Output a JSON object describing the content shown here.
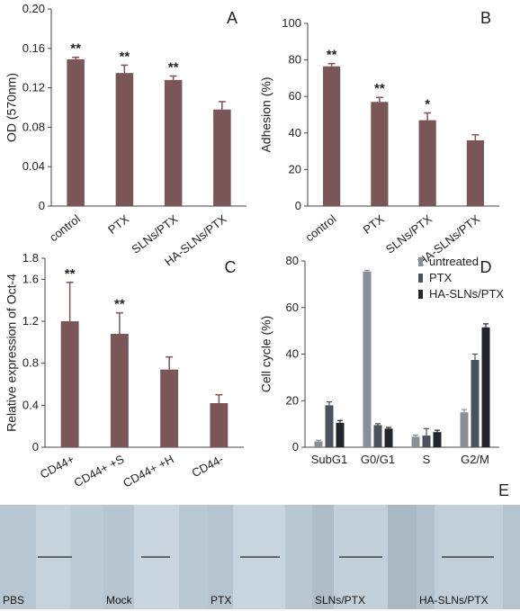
{
  "chart_data": [
    {
      "panel": "A",
      "type": "bar",
      "categories": [
        "control",
        "PTX",
        "SLNs/PTX",
        "HA-SLNs/PTX"
      ],
      "values": [
        0.149,
        0.135,
        0.128,
        0.098
      ],
      "errors": [
        0.002,
        0.008,
        0.004,
        0.008
      ],
      "annotations": [
        "**",
        "**",
        "**",
        ""
      ],
      "ylabel": "OD (570nm)",
      "ylim": [
        0,
        0.2
      ],
      "yticks": [
        "0",
        "0.04",
        "0.08",
        "0.12",
        "0.16",
        "0.20"
      ],
      "color": "#7a5656"
    },
    {
      "panel": "B",
      "type": "bar",
      "categories": [
        "control",
        "PTX",
        "SLNs/PTX",
        "HA-SLNs/PTX"
      ],
      "values": [
        76.5,
        57,
        47,
        36
      ],
      "errors": [
        1.5,
        2.5,
        4,
        3
      ],
      "annotations": [
        "**",
        "**",
        "*",
        ""
      ],
      "ylabel": "Adhesion (%)",
      "ylim": [
        0,
        100
      ],
      "yticks": [
        "0",
        "20",
        "40",
        "60",
        "80",
        "100"
      ],
      "color": "#7a5656"
    },
    {
      "panel": "C",
      "type": "bar",
      "categories": [
        "CD44+",
        "CD44+ +S",
        "CD44+ +H",
        "CD44-"
      ],
      "values": [
        1.2,
        1.08,
        0.74,
        0.42
      ],
      "errors": [
        0.37,
        0.2,
        0.12,
        0.08
      ],
      "annotations": [
        "**",
        "**",
        "",
        ""
      ],
      "ylabel": "Relative expression of Oct-4",
      "ylim": [
        0,
        1.8
      ],
      "yticks": [
        "0",
        "0.4",
        "0.8",
        "1.2",
        "1.6",
        "1.8"
      ],
      "color": "#7a5656"
    },
    {
      "panel": "D",
      "type": "bar",
      "categories": [
        "SubG1",
        "G0/G1",
        "S",
        "G2/M"
      ],
      "series": [
        {
          "name": "untreated",
          "values": [
            2.5,
            75.5,
            4.5,
            15
          ],
          "errors": [
            0.5,
            0.5,
            0.7,
            1.2
          ],
          "color": "#8a8f97"
        },
        {
          "name": "PTX",
          "values": [
            18,
            9.5,
            5,
            37.5
          ],
          "errors": [
            1.5,
            0.6,
            3,
            2.5
          ],
          "color": "#4b525c"
        },
        {
          "name": "HA-SLNs/PTX",
          "values": [
            10.5,
            8,
            6.5,
            51.5
          ],
          "errors": [
            1,
            0.5,
            0.8,
            1.5
          ],
          "color": "#22262c"
        }
      ],
      "ylabel": "Cell cycle (%)",
      "ylim": [
        0,
        80
      ],
      "yticks": [
        "0",
        "20",
        "40",
        "60",
        "80"
      ],
      "legend_position": "top-right"
    }
  ],
  "panel_e": {
    "letter": "E",
    "labels": [
      "PBS",
      "Mock",
      "PTX",
      "SLNs/PTX",
      "HA-SLNs/PTX"
    ]
  }
}
